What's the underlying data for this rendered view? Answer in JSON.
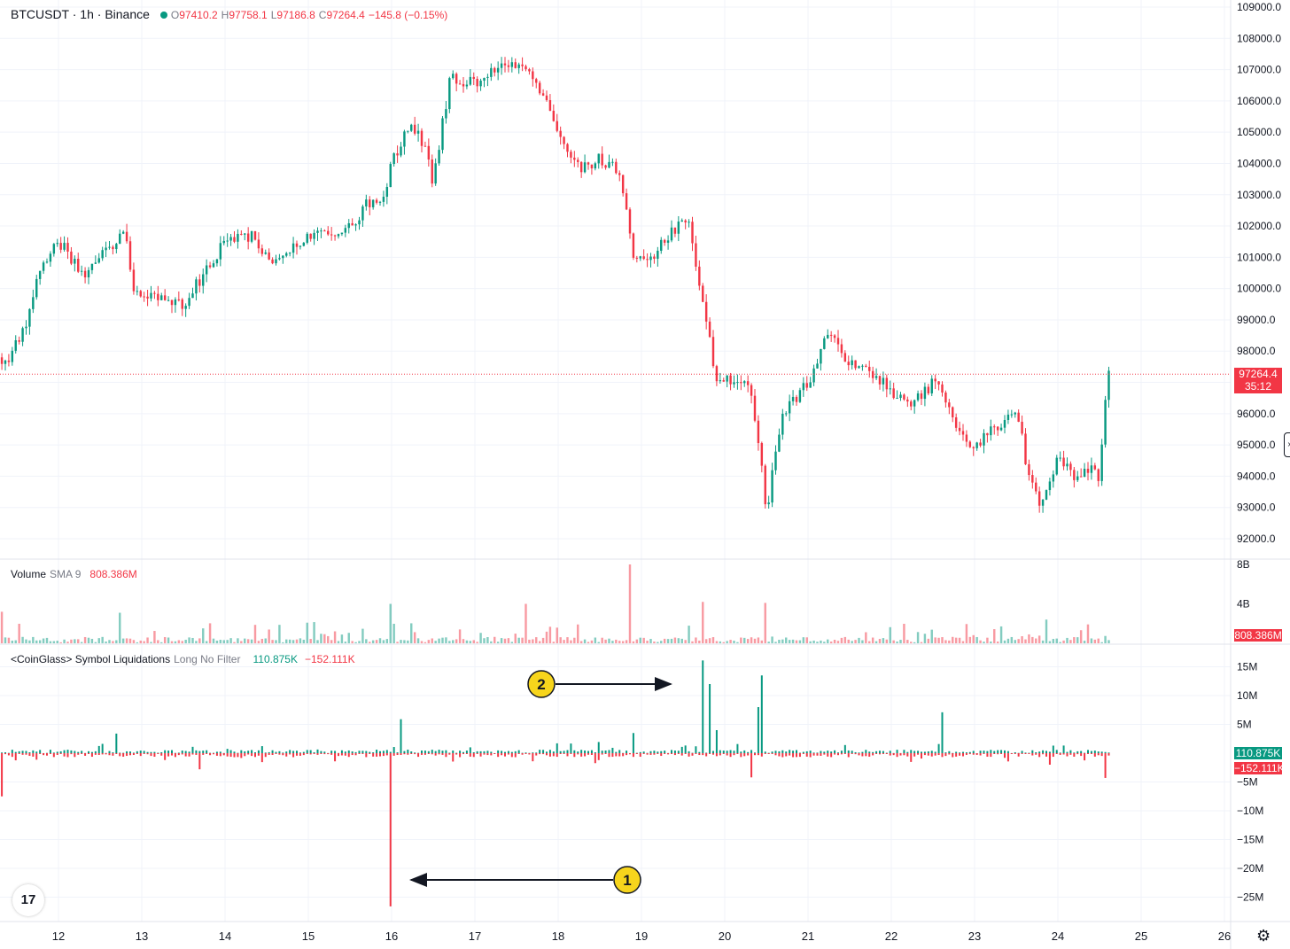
{
  "header": {
    "symbol": "BTCUSDT · 1h · Binance",
    "o_label": "O",
    "o_value": "97410.2",
    "h_label": "H",
    "h_value": "97758.1",
    "l_label": "L",
    "l_value": "97186.8",
    "c_label": "C",
    "c_value": "97264.4",
    "change": "−145.8 (−0.15%)"
  },
  "volume_legend": {
    "name": "Volume",
    "sma": "SMA 9",
    "value": "808.386M"
  },
  "liq_legend": {
    "name": "<CoinGlass> Symbol Liquidations",
    "mode": "Long No Filter",
    "long_value": "110.875K",
    "short_value": "−152.111K"
  },
  "price_tag": {
    "price": "97264.4",
    "countdown": "35:12"
  },
  "volume_tag": "808.386M",
  "liq_tags": {
    "long": "110.875K",
    "short": "−152.111K"
  },
  "annotations": [
    {
      "label": "1"
    },
    {
      "label": "2"
    }
  ],
  "logo_text": "17",
  "colors": {
    "up": "#089981",
    "down": "#f23645",
    "grid": "#f0f3fa",
    "annotation": "#f7d51c"
  },
  "chart_data": [
    {
      "type": "candlestick",
      "title": "BTCUSDT · 1h · Binance",
      "x_tick_labels": [
        "12",
        "13",
        "14",
        "15",
        "16",
        "17",
        "18",
        "19",
        "20",
        "21",
        "22",
        "23",
        "24",
        "25",
        "26"
      ],
      "y_tick_labels": [
        "109000.0",
        "108000.0",
        "107000.0",
        "106000.0",
        "105000.0",
        "104000.0",
        "103000.0",
        "102000.0",
        "101000.0",
        "100000.0",
        "99000.0",
        "98000.0",
        "97000.0",
        "96000.0",
        "95000.0",
        "94000.0",
        "93000.0",
        "92000.0"
      ],
      "ylim": [
        91700,
        109000
      ],
      "last_price": 97264.4,
      "close_path_days": [
        11.4,
        11.6,
        11.8,
        12.0,
        12.3,
        12.6,
        12.8,
        12.9,
        13.2,
        13.5,
        13.7,
        14.0,
        14.3,
        14.6,
        14.9,
        15.2,
        15.5,
        15.7,
        15.9,
        16.0,
        16.2,
        16.4,
        16.5,
        16.7,
        17.0,
        17.3,
        17.55,
        17.8,
        18.0,
        18.3,
        18.5,
        18.75,
        18.9,
        19.1,
        19.3,
        19.55,
        19.75,
        19.9,
        20.1,
        20.3,
        20.45,
        20.5,
        20.7,
        21.0,
        21.25,
        21.5,
        21.8,
        22.1,
        22.3,
        22.5,
        22.6,
        22.8,
        23.0,
        23.2,
        23.4,
        23.5,
        23.65,
        23.8,
        24.0,
        24.2,
        24.4,
        24.5,
        24.55,
        24.6
      ],
      "close_path_values": [
        97800,
        98800,
        100800,
        101500,
        100500,
        101200,
        101800,
        99800,
        99700,
        99500,
        100300,
        101500,
        101700,
        100800,
        101500,
        101700,
        102000,
        102700,
        103000,
        104000,
        105200,
        104600,
        103400,
        106700,
        106600,
        107100,
        107000,
        106400,
        104800,
        103800,
        104200,
        103700,
        101000,
        100800,
        101700,
        102300,
        99200,
        97200,
        97000,
        96800,
        94300,
        92900,
        96000,
        97000,
        98800,
        97600,
        97200,
        96500,
        96400,
        97000,
        96800,
        95400,
        95000,
        95500,
        95900,
        96200,
        94000,
        93000,
        94600,
        94000,
        94200,
        93900,
        96100,
        97300
      ]
    },
    {
      "type": "bar",
      "title": "Volume SMA 9",
      "y_tick_labels": [
        "8B",
        "4B"
      ],
      "ylim": [
        0,
        8000000000
      ],
      "sma9": 808386000,
      "spike_days": [
        18.85,
        19.75,
        20.5,
        17.6,
        16.0,
        11.3,
        12.75
      ],
      "spike_values": [
        8000000000,
        4200000000,
        4100000000,
        4000000000,
        4000000000,
        3200000000,
        3100000000
      ]
    },
    {
      "type": "bar",
      "title": "<CoinGlass> Symbol Liquidations Long No Filter",
      "y_tick_labels": [
        "15M",
        "10M",
        "5M",
        "−5M",
        "−10M",
        "−15M",
        "−20M",
        "−25M"
      ],
      "ylim": [
        -27000000,
        17000000
      ],
      "long_last": 110875,
      "short_last": -152111,
      "long_spike_days": [
        19.75,
        19.8,
        20.45,
        20.4,
        22.6,
        16.1,
        19.9,
        12.7,
        18.9
      ],
      "long_spike_values": [
        16100000,
        12000000,
        13500000,
        8000000,
        7100000,
        5900000,
        4000000,
        3400000,
        3500000
      ],
      "short_spike_days": [
        16.0,
        11.3,
        20.3,
        24.55,
        13.7,
        23.9
      ],
      "short_spike_values": [
        -26600000,
        -7500000,
        -4200000,
        -4300000,
        -2800000,
        -2000000
      ]
    }
  ]
}
